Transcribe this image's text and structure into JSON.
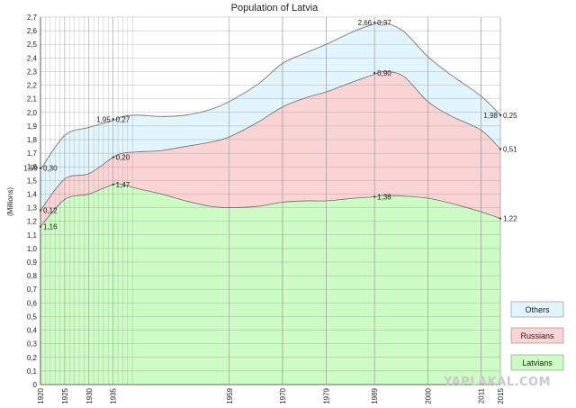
{
  "chart_data": {
    "type": "area",
    "title": "Population of Latvia",
    "ylabel": "(Millions)",
    "xlabel": "",
    "ylim": [
      0,
      2.7
    ],
    "ytick_step": 0.1,
    "stacked": true,
    "x_ticks": [
      "1920",
      "1925",
      "1930",
      "1935",
      "1959",
      "1970",
      "1979",
      "1989",
      "2000",
      "2011",
      "2015"
    ],
    "x_minor_years": [
      1921,
      1922,
      1923,
      1924,
      1926,
      1927,
      1928,
      1929,
      1931,
      1932,
      1933,
      1934,
      1936,
      1937,
      1938,
      1939,
      1959,
      1970,
      1979,
      1989,
      2000,
      2011,
      2015
    ],
    "x": [
      1920,
      1925,
      1930,
      1935,
      1937,
      1940,
      1945,
      1950,
      1955,
      1959,
      1965,
      1970,
      1975,
      1979,
      1985,
      1989,
      1991,
      1995,
      2000,
      2005,
      2011,
      2015
    ],
    "series": [
      {
        "name": "Latvians",
        "color": "#ccfcc4",
        "values": [
          1.16,
          1.36,
          1.4,
          1.47,
          1.47,
          1.44,
          1.4,
          1.35,
          1.31,
          1.3,
          1.31,
          1.34,
          1.35,
          1.35,
          1.37,
          1.38,
          1.39,
          1.385,
          1.37,
          1.33,
          1.27,
          1.22
        ]
      },
      {
        "name": "Russians",
        "color": "#fad4d4",
        "values": [
          0.12,
          0.15,
          0.15,
          0.2,
          0.23,
          0.27,
          0.32,
          0.4,
          0.47,
          0.52,
          0.62,
          0.7,
          0.76,
          0.8,
          0.86,
          0.9,
          0.91,
          0.88,
          0.71,
          0.64,
          0.6,
          0.51
        ]
      },
      {
        "name": "Others",
        "color": "#e2f4fc",
        "values": [
          0.3,
          0.32,
          0.34,
          0.27,
          0.27,
          0.27,
          0.25,
          0.23,
          0.24,
          0.26,
          0.28,
          0.32,
          0.33,
          0.35,
          0.37,
          0.37,
          0.36,
          0.33,
          0.33,
          0.3,
          0.25,
          0.25
        ]
      }
    ],
    "annotations": [
      {
        "year": 1920,
        "label": "1,59",
        "side": "left",
        "y": 1.59
      },
      {
        "year": 1920,
        "label": "0,30",
        "side": "right",
        "y": 1.59
      },
      {
        "year": 1920,
        "label": "0,12",
        "side": "right",
        "y": 1.28
      },
      {
        "year": 1920,
        "label": "1,16",
        "side": "right",
        "y": 1.16
      },
      {
        "year": 1935,
        "label": "1,95",
        "side": "left",
        "y": 1.95
      },
      {
        "year": 1935,
        "label": "0,27",
        "side": "right",
        "y": 1.95
      },
      {
        "year": 1935,
        "label": "0,20",
        "side": "right",
        "y": 1.67
      },
      {
        "year": 1935,
        "label": "1,47",
        "side": "right",
        "y": 1.47
      },
      {
        "year": 1989,
        "label": "2,66",
        "side": "left",
        "y": 2.66
      },
      {
        "year": 1989,
        "label": "0,37",
        "side": "right",
        "y": 2.66
      },
      {
        "year": 1989,
        "label": "0,90",
        "side": "right",
        "y": 2.29
      },
      {
        "year": 1989,
        "label": "1,38",
        "side": "right",
        "y": 1.38
      },
      {
        "year": 2015,
        "label": "1,98",
        "side": "left",
        "y": 1.98
      },
      {
        "year": 2015,
        "label": "0,25",
        "side": "right",
        "y": 1.98
      },
      {
        "year": 2015,
        "label": "0,51",
        "side": "right",
        "y": 1.73
      },
      {
        "year": 2015,
        "label": "1,22",
        "side": "right",
        "y": 1.22
      }
    ],
    "legend": {
      "placement": "right",
      "items": [
        {
          "label": "Others",
          "color": "#e2f4fc"
        },
        {
          "label": "Russians",
          "color": "#fad4d4"
        },
        {
          "label": "Latvians",
          "color": "#ccfcc4"
        }
      ]
    },
    "grid": true
  },
  "watermark": {
    "text": "YAPLAKAL.COM"
  }
}
